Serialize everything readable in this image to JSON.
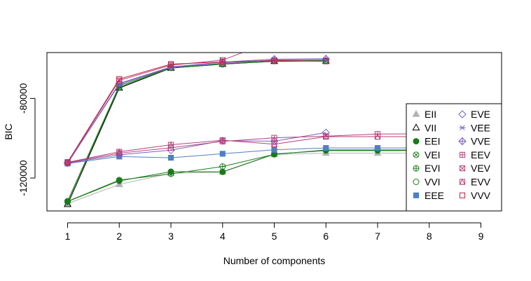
{
  "chart_data": {
    "type": "line",
    "xlabel": "Number of components",
    "ylabel": "BIC",
    "x": [
      1,
      2,
      3,
      4,
      5,
      6,
      7,
      8,
      9
    ],
    "xlim": [
      0.6,
      9.4
    ],
    "ylim": [
      -136500,
      -57000
    ],
    "xticks": [
      "1",
      "2",
      "3",
      "4",
      "5",
      "6",
      "7",
      "8",
      "9"
    ],
    "yticks": [
      {
        "value": -80000,
        "label": "-80000"
      },
      {
        "value": -120000,
        "label": "-120000"
      }
    ],
    "grid": false,
    "legend_position": "right",
    "series": [
      {
        "name": "EII",
        "color": "#b3b3b3",
        "symbol": "triangle-filled",
        "values": [
          -132800,
          -123200,
          -117600,
          -117000,
          -108200,
          -107500,
          -107500,
          -107500,
          -107500
        ]
      },
      {
        "name": "VII",
        "color": "#000000",
        "symbol": "triangle-open",
        "values": [
          -133200,
          -74800,
          -64800,
          -62800,
          -61400,
          -61200,
          null,
          null,
          null
        ]
      },
      {
        "name": "EEI",
        "color": "#1a7a1a",
        "symbol": "circle-filled",
        "values": [
          -131800,
          -121400,
          -116800,
          -116900,
          -107900,
          -106200,
          -106200,
          -106200,
          -106200
        ]
      },
      {
        "name": "VEI",
        "color": "#1a7a1a",
        "symbol": "circle-x",
        "values": [
          -131900,
          -74300,
          -64700,
          -62900,
          -61300,
          -61100,
          null,
          null,
          null
        ]
      },
      {
        "name": "EVI",
        "color": "#1a7a1a",
        "symbol": "circle-plus",
        "values": [
          -131700,
          -121000,
          -117900,
          -114200,
          -108100,
          -105900,
          -105900,
          -105900,
          -105900
        ]
      },
      {
        "name": "VVI",
        "color": "#1a7a1a",
        "symbol": "circle-open",
        "values": [
          -131600,
          -73600,
          -64500,
          -62700,
          -61200,
          -61000,
          null,
          null,
          null
        ]
      },
      {
        "name": "EEE",
        "color": "#4f7fc4",
        "symbol": "square-filled",
        "values": [
          -112700,
          -109200,
          -109800,
          -107800,
          -105800,
          -104900,
          -104900,
          -104900,
          -104900
        ]
      },
      {
        "name": "EVE",
        "color": "#7b5fc2",
        "symbol": "diamond-open",
        "values": [
          -112500,
          -108300,
          -106000,
          -101300,
          -101500,
          -97200,
          null,
          null,
          null
        ]
      },
      {
        "name": "VEE",
        "color": "#7b5fc2",
        "symbol": "asterisk",
        "values": [
          -112600,
          -72900,
          -64400,
          -62300,
          -60800,
          -60500,
          null,
          null,
          null
        ]
      },
      {
        "name": "VVE",
        "color": "#7b5fc2",
        "symbol": "diamond-plus",
        "values": [
          -112400,
          -72500,
          -64200,
          -61800,
          -60300,
          -60100,
          null,
          null,
          null
        ]
      },
      {
        "name": "EEV",
        "color": "#b5407a",
        "symbol": "square-plus",
        "values": [
          -112300,
          -107500,
          -104800,
          -101600,
          -99800,
          -99000,
          -97900,
          -97800,
          -97700
        ]
      },
      {
        "name": "VEV",
        "color": "#b5407a",
        "symbol": "square-x",
        "values": [
          -112200,
          -71000,
          -63300,
          -60800,
          -50900,
          null,
          null,
          null,
          null
        ]
      },
      {
        "name": "EVV",
        "color": "#b5407a",
        "symbol": "square-triangle",
        "values": [
          -112100,
          -106800,
          -103300,
          -101000,
          -103000,
          -99200,
          -99200,
          -99200,
          -99200
        ]
      },
      {
        "name": "VVV",
        "color": "#c21f3a",
        "symbol": "square-open",
        "values": [
          -112000,
          -70300,
          -62800,
          -61700,
          -61000,
          -61400,
          null,
          null,
          null
        ]
      }
    ]
  }
}
